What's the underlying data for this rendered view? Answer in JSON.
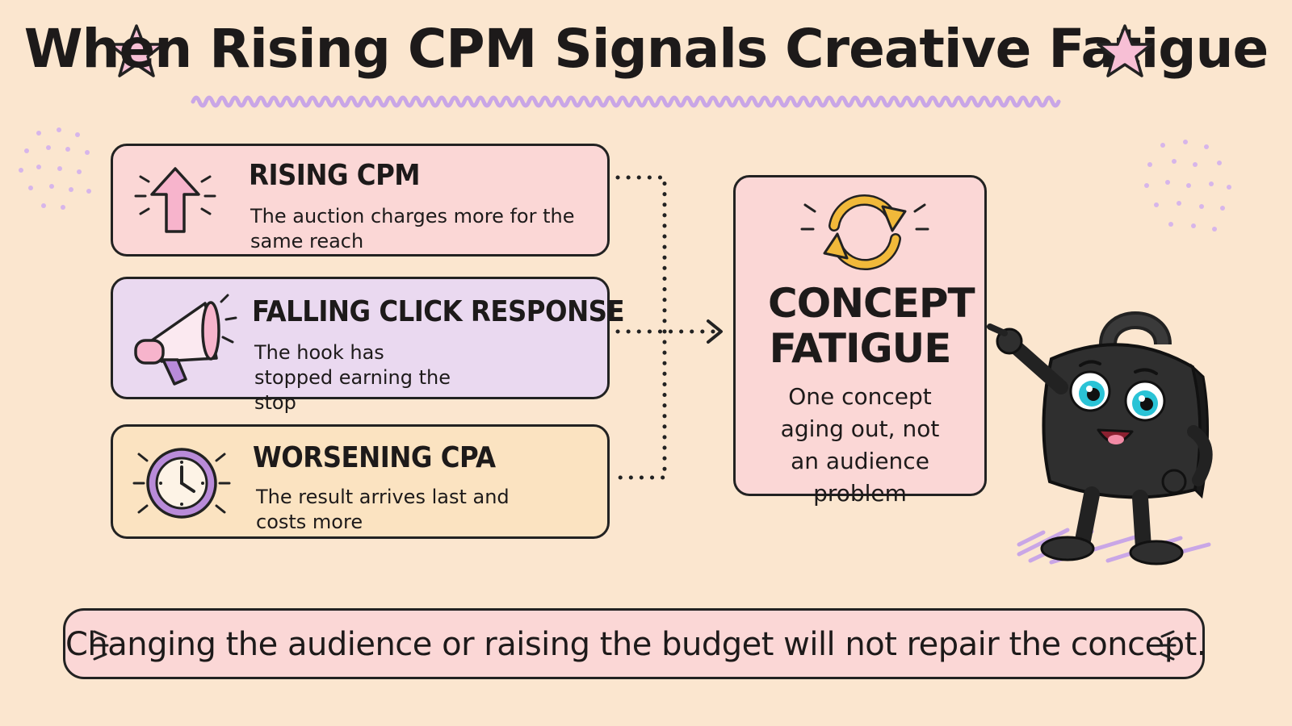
{
  "title": "When Rising CPM Signals Creative Fatigue",
  "signals": [
    {
      "heading": "RISING CPM",
      "description": "The auction charges more for the same reach",
      "icon": "up-arrow-icon"
    },
    {
      "heading": "FALLING CLICK RESPONSE",
      "description": "The hook has stopped earning the stop",
      "icon": "megaphone-icon"
    },
    {
      "heading": "WORSENING CPA",
      "description": "The result arrives last and costs more",
      "icon": "clock-icon"
    }
  ],
  "outcome": {
    "heading": "CONCEPT FATIGUE",
    "description": "One concept aging out, not an audience problem",
    "icon": "refresh-cycle-icon"
  },
  "banner": "Changing the audience or raising the budget will not repair the concept.",
  "colors": {
    "background": "#fbe6cf",
    "pink_card": "#fbd7d6",
    "purple_card": "#ead9f0",
    "orange_card": "#fbe3c1",
    "accent_purple": "#b98bd9",
    "accent_pink": "#f7b7cf",
    "accent_yellow": "#f1b93a"
  },
  "mascot": "smiling-padlock-character-icon"
}
